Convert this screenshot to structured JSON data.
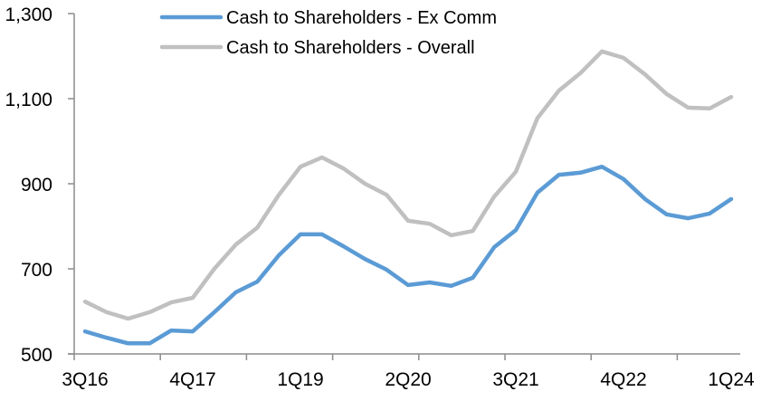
{
  "chart_data": {
    "type": "line",
    "title": "",
    "xlabel": "",
    "ylabel": "",
    "ylim": [
      500,
      1300
    ],
    "yticks": [
      500,
      700,
      900,
      1100,
      1300
    ],
    "ytick_labels": [
      "500",
      "700",
      "900",
      "1,100",
      "1,300"
    ],
    "x": [
      "3Q16",
      "4Q16",
      "1Q17",
      "2Q17",
      "3Q17",
      "4Q17",
      "1Q18",
      "2Q18",
      "3Q18",
      "4Q18",
      "1Q19",
      "2Q19",
      "3Q19",
      "4Q19",
      "1Q20",
      "2Q20",
      "3Q20",
      "4Q20",
      "1Q21",
      "2Q21",
      "3Q21",
      "4Q21",
      "1Q22",
      "2Q22",
      "3Q22",
      "4Q22",
      "1Q23",
      "2Q23",
      "3Q23",
      "4Q23",
      "1Q24"
    ],
    "xtick_labels": [
      "3Q16",
      "4Q17",
      "1Q19",
      "2Q20",
      "3Q21",
      "4Q22",
      "1Q24"
    ],
    "grid": false,
    "legend": "top-center",
    "series": [
      {
        "name": "Cash to Shareholders - Ex Comm",
        "color": "#5b9bd5",
        "values": [
          553,
          538,
          525,
          525,
          555,
          553,
          598,
          645,
          670,
          732,
          781,
          781,
          753,
          723,
          698,
          662,
          668,
          660,
          679,
          751,
          791,
          879,
          921,
          926,
          940,
          911,
          864,
          828,
          819,
          830,
          864
        ]
      },
      {
        "name": "Cash to Shareholders - Overall",
        "color": "#c0c0c0",
        "values": [
          623,
          598,
          583,
          598,
          621,
          632,
          700,
          757,
          797,
          874,
          940,
          962,
          936,
          900,
          874,
          813,
          806,
          779,
          789,
          870,
          928,
          1054,
          1119,
          1160,
          1211,
          1196,
          1157,
          1111,
          1079,
          1077,
          1104
        ]
      }
    ]
  }
}
